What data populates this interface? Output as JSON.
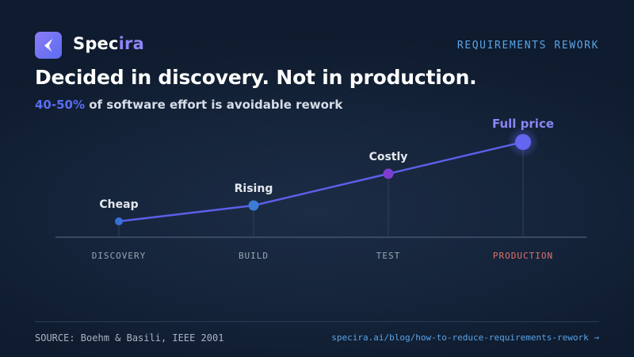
{
  "brand": {
    "name_part1": "Spec",
    "name_part2": "ira",
    "logo_icon": "paper-plane-icon",
    "gradient_from": "#8b7cf6",
    "gradient_to": "#5b6cf0"
  },
  "tag": "REQUIREMENTS REWORK",
  "headline": "Decided in discovery. Not in production.",
  "subhead": {
    "highlight": "40-50%",
    "text": " of software effort is avoidable rework"
  },
  "chart_data": {
    "type": "line",
    "categories": [
      "DISCOVERY",
      "BUILD",
      "TEST",
      "PRODUCTION"
    ],
    "values": [
      1,
      2,
      4,
      6
    ],
    "point_labels": [
      "Cheap",
      "Rising",
      "Costly",
      "Full price"
    ],
    "ylim": [
      0,
      7
    ],
    "grid": false,
    "highlight_category": "PRODUCTION",
    "colors": {
      "line": "#5b5fe8",
      "points": [
        "#3a6fd8",
        "#3e7ad8",
        "#7c3ed0",
        "#6466f1"
      ],
      "highlight_category": "#e0726c",
      "axis": "#44546c"
    }
  },
  "footer": {
    "source": "SOURCE: Boehm & Basili, IEEE 2001",
    "link": "specira.ai/blog/how-to-reduce-requirements-rework →"
  }
}
